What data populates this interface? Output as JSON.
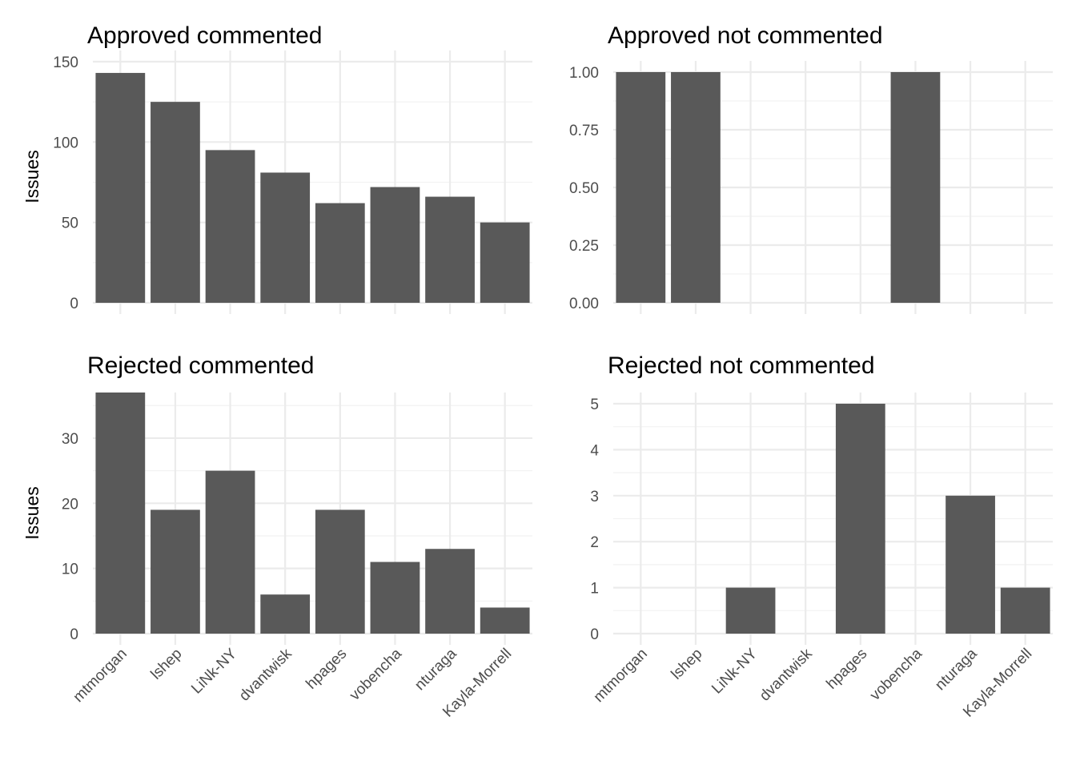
{
  "chart_data": [
    {
      "type": "bar",
      "title": "Approved commented",
      "ylabel": "Issues",
      "categories": [
        "mtmorgan",
        "lshep",
        "LiNk-NY",
        "dvantwisk",
        "hpages",
        "vobencha",
        "nturaga",
        "Kayla-Morrell"
      ],
      "values": [
        143,
        125,
        95,
        81,
        62,
        72,
        66,
        50
      ],
      "ylim": [
        0,
        150
      ],
      "yticks": [
        0,
        50,
        100,
        150
      ],
      "ytick_labels": [
        "0",
        "50",
        "100",
        "150"
      ],
      "show_x_labels": false
    },
    {
      "type": "bar",
      "title": "Approved not commented",
      "ylabel": "",
      "categories": [
        "mtmorgan",
        "lshep",
        "LiNk-NY",
        "dvantwisk",
        "hpages",
        "vobencha",
        "nturaga",
        "Kayla-Morrell"
      ],
      "values": [
        1,
        1,
        0,
        0,
        0,
        1,
        0,
        0
      ],
      "ylim": [
        0,
        1
      ],
      "yticks": [
        0,
        0.25,
        0.5,
        0.75,
        1
      ],
      "ytick_labels": [
        "0.00",
        "0.25",
        "0.50",
        "0.75",
        "1.00"
      ],
      "show_x_labels": false
    },
    {
      "type": "bar",
      "title": "Rejected commented",
      "ylabel": "Issues",
      "categories": [
        "mtmorgan",
        "lshep",
        "LiNk-NY",
        "dvantwisk",
        "hpages",
        "vobencha",
        "nturaga",
        "Kayla-Morrell"
      ],
      "values": [
        37,
        19,
        25,
        6,
        19,
        11,
        13,
        4
      ],
      "ylim": [
        0,
        37
      ],
      "yticks": [
        0,
        10,
        20,
        30
      ],
      "ytick_labels": [
        "0",
        "10",
        "20",
        "30"
      ],
      "show_x_labels": true
    },
    {
      "type": "bar",
      "title": "Rejected not commented",
      "ylabel": "",
      "categories": [
        "mtmorgan",
        "lshep",
        "LiNk-NY",
        "dvantwisk",
        "hpages",
        "vobencha",
        "nturaga",
        "Kayla-Morrell"
      ],
      "values": [
        0,
        0,
        1,
        0,
        5,
        0,
        3,
        1
      ],
      "ylim": [
        0,
        5
      ],
      "yticks": [
        0,
        1,
        2,
        3,
        4,
        5
      ],
      "ytick_labels": [
        "0",
        "1",
        "2",
        "3",
        "4",
        "5"
      ],
      "show_x_labels": true
    }
  ]
}
